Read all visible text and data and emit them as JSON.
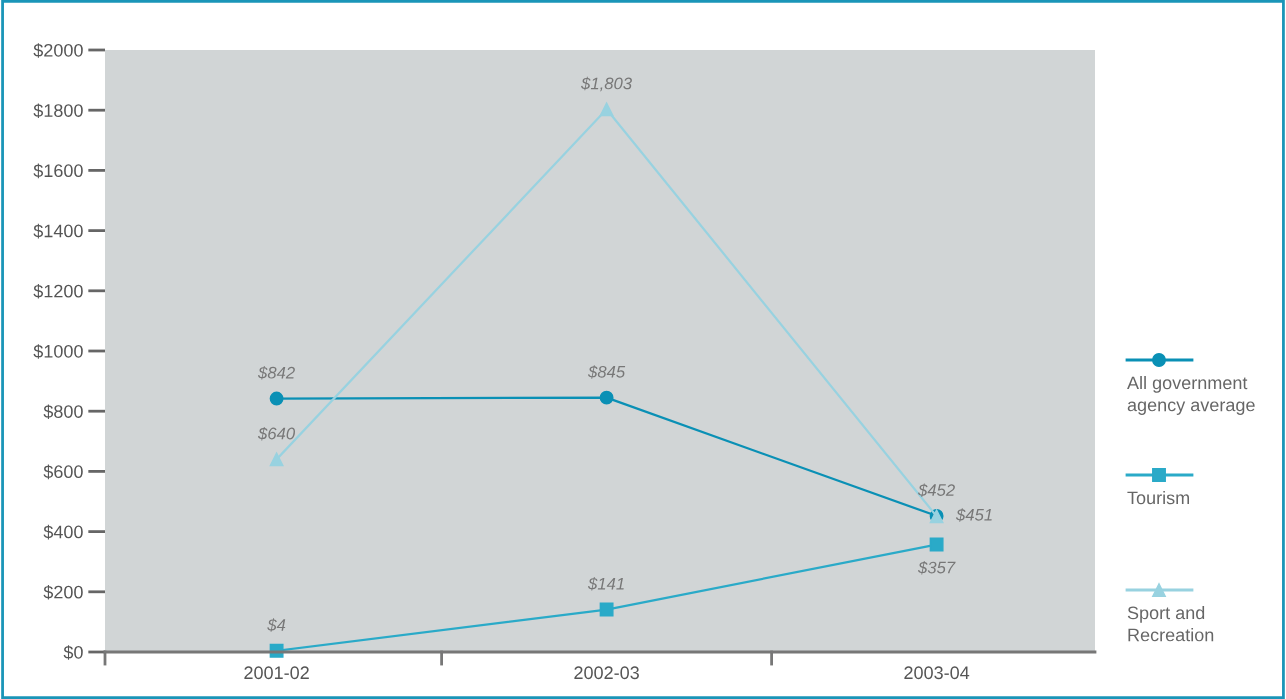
{
  "chart_data": {
    "type": "line",
    "categories": [
      "2001-02",
      "2002-03",
      "2003-04"
    ],
    "series": [
      {
        "name": "All government agency average",
        "color": "#0a90b5",
        "marker": "circle",
        "values": [
          842,
          845,
          452
        ],
        "value_labels": [
          "$842",
          "$845",
          "$452"
        ]
      },
      {
        "name": "Tourism",
        "color": "#2aaac8",
        "marker": "square",
        "values": [
          4,
          141,
          357
        ],
        "value_labels": [
          "$4",
          "$141",
          "$357"
        ]
      },
      {
        "name": "Sport and Recreation",
        "color": "#98d2e0",
        "marker": "triangle",
        "values": [
          640,
          1803,
          451
        ],
        "value_labels": [
          "$640",
          "$1,803",
          "$451"
        ]
      }
    ],
    "ylim": [
      0,
      2000
    ],
    "yticks": [
      {
        "value": 0,
        "label": "$0"
      },
      {
        "value": 200,
        "label": "$200"
      },
      {
        "value": 400,
        "label": "$400"
      },
      {
        "value": 600,
        "label": "$600"
      },
      {
        "value": 800,
        "label": "$800"
      },
      {
        "value": 1000,
        "label": "$1000"
      },
      {
        "value": 1200,
        "label": "$1200"
      },
      {
        "value": 1400,
        "label": "$1400"
      },
      {
        "value": 1600,
        "label": "$1600"
      },
      {
        "value": 1800,
        "label": "$1800"
      },
      {
        "value": 2000,
        "label": "$2000"
      }
    ],
    "grid": false,
    "legend": "right",
    "line_style": "solid"
  }
}
